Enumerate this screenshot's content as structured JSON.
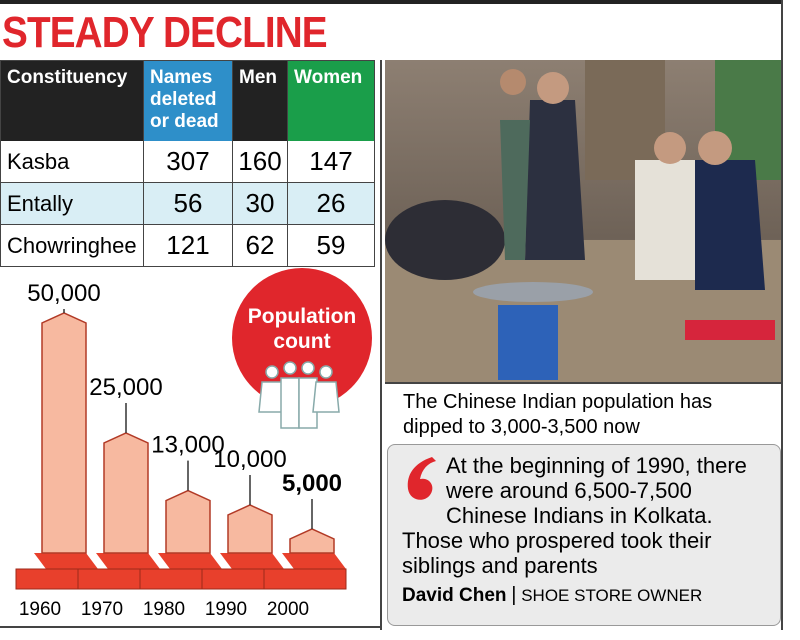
{
  "title": "STEADY DECLINE",
  "table": {
    "header": [
      "Constituency",
      "Names deleted or dead",
      "Men",
      "Women"
    ],
    "rows": [
      [
        "Kasba",
        307,
        160,
        147
      ],
      [
        "Entally",
        56,
        30,
        26
      ],
      [
        "Chowringhee",
        121,
        62,
        59
      ]
    ]
  },
  "chart_data": {
    "type": "bar",
    "title": "Population count",
    "categories": [
      "1960",
      "1970",
      "1980",
      "1990",
      "2000"
    ],
    "values": [
      50000,
      25000,
      13000,
      10000,
      5000
    ],
    "value_labels": [
      "50,000",
      "25,000",
      "13,000",
      "10,000",
      "5,000"
    ],
    "color": "#f7b9a0"
  },
  "photo_caption": "The Chinese Indian population has dipped to 3,000-3,500 now",
  "quote": {
    "text": "At the beginning of 1990, there were around 6,500-7,500 Chinese Indians in Kolkata. Those who prospered took their siblings and parents",
    "author": "David Chen",
    "role": "SHOE STORE OWNER"
  }
}
